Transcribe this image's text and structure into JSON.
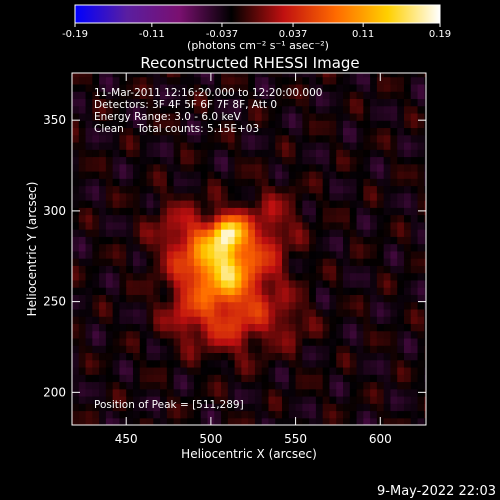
{
  "chart_data": {
    "type": "heatmap",
    "title": "Reconstructed RHESSI Image",
    "xlabel": "Heliocentric X (arcsec)",
    "ylabel": "Heliocentric Y (arcsec)",
    "xlim": [
      418,
      627
    ],
    "ylim": [
      182,
      376
    ],
    "x_ticks": [
      450,
      500,
      550,
      600
    ],
    "y_ticks": [
      200,
      250,
      300,
      350
    ],
    "colorbar": {
      "range": [
        -0.19,
        0.19
      ],
      "ticks": [
        "-0.19",
        "-0.11",
        "-0.037",
        "0.037",
        "0.11",
        "0.19"
      ],
      "units": "(photons cm⁻² s⁻¹ asec⁻²)",
      "colormap": [
        "#0000ff",
        "#5a1ea0",
        "#7a1070",
        "#000000",
        "#c01010",
        "#ff6a00",
        "#ffd000",
        "#ffffff"
      ]
    },
    "annotations": [
      "11-Mar-2011 12:16:20.000 to 12:20:00.000",
      "Detectors: 3F 4F 5F 6F 7F 8F, Att 0",
      "Energy Range: 3.0 - 6.0 keV",
      "Clean    Total counts: 5.15E+03"
    ],
    "peak_label": "Position of Peak = [511,289]",
    "peak": {
      "x": 511,
      "y": 289
    },
    "sources": [
      {
        "x": 511,
        "y": 289,
        "sigma": 6,
        "amp": 0.12
      },
      {
        "x": 506,
        "y": 278,
        "sigma": 11,
        "amp": 0.09
      },
      {
        "x": 510,
        "y": 262,
        "sigma": 7,
        "amp": 0.05
      },
      {
        "x": 495,
        "y": 272,
        "sigma": 14,
        "amp": 0.06
      },
      {
        "x": 525,
        "y": 275,
        "sigma": 13,
        "amp": 0.05
      },
      {
        "x": 500,
        "y": 252,
        "sigma": 16,
        "amp": 0.045
      },
      {
        "x": 527,
        "y": 248,
        "sigma": 14,
        "amp": 0.04
      },
      {
        "x": 480,
        "y": 290,
        "sigma": 12,
        "amp": 0.035
      },
      {
        "x": 536,
        "y": 296,
        "sigma": 12,
        "amp": 0.035
      },
      {
        "x": 486,
        "y": 241,
        "sigma": 10,
        "amp": 0.03
      },
      {
        "x": 548,
        "y": 238,
        "sigma": 9,
        "amp": 0.025
      },
      {
        "x": 512,
        "y": 235,
        "sigma": 12,
        "amp": 0.03
      }
    ]
  },
  "footer": {
    "date": "9-May-2022 22:03"
  }
}
